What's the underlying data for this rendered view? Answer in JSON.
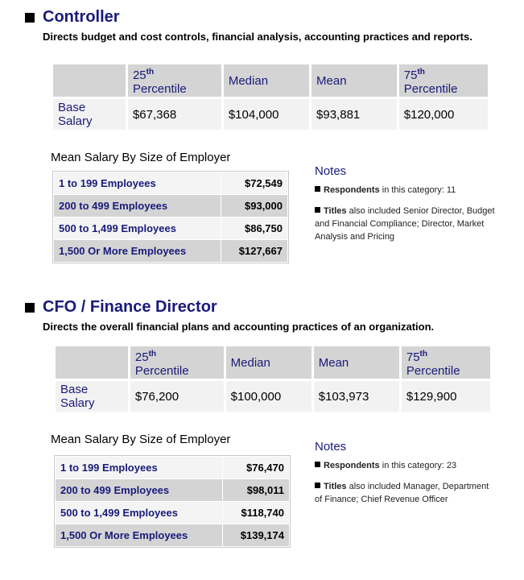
{
  "sections": [
    {
      "title": "Controller",
      "description": "Directs budget and cost controls, financial analysis, accounting practices and reports.",
      "salary_table": {
        "headers": [
          {
            "num": "25",
            "sup": "th",
            "rest": "Percentile"
          },
          {
            "label": "Median"
          },
          {
            "label": "Mean"
          },
          {
            "num": "75",
            "sup": "th",
            "rest": "Percentile"
          }
        ],
        "row_label_1": "Base",
        "row_label_2": "Salary",
        "values": [
          "$67,368",
          "$104,000",
          "$93,881",
          "$120,000"
        ]
      },
      "employer_heading": "Mean Salary By Size of Employer",
      "employer_rows": [
        {
          "label": "1 to 199 Employees",
          "value": "$72,549"
        },
        {
          "label": "200 to 499 Employees",
          "value": "$93,000"
        },
        {
          "label": "500 to 1,499 Employees",
          "value": "$86,750"
        },
        {
          "label": "1,500 Or More Employees",
          "value": "$127,667"
        }
      ],
      "notes": {
        "heading": "Notes",
        "respondents_label": "Respondents",
        "respondents_text": " in this category: 11",
        "titles_label": "Titles",
        "titles_text": " also included Senior Director, Budget and Financial Compliance; Director, Market Analysis and Pricing"
      }
    },
    {
      "title": "CFO / Finance Director",
      "description": "Directs the overall financial plans and accounting practices of an organization.",
      "salary_table": {
        "headers": [
          {
            "num": "25",
            "sup": "th",
            "rest": "Percentile"
          },
          {
            "label": "Median"
          },
          {
            "label": "Mean"
          },
          {
            "num": "75",
            "sup": "th",
            "rest": "Percentile"
          }
        ],
        "row_label_1": "Base",
        "row_label_2": "Salary",
        "values": [
          "$76,200",
          "$100,000",
          "$103,973",
          "$129,900"
        ]
      },
      "employer_heading": "Mean Salary By Size of Employer",
      "employer_rows": [
        {
          "label": "1 to 199 Employees",
          "value": "$76,470"
        },
        {
          "label": "200 to 499 Employees",
          "value": "$98,011"
        },
        {
          "label": "500 to 1,499 Employees",
          "value": "$118,740"
        },
        {
          "label": "1,500 Or More Employees",
          "value": "$139,174"
        }
      ],
      "notes": {
        "heading": "Notes",
        "respondents_label": "Respondents",
        "respondents_text": " in this category: 23",
        "titles_label": "Titles",
        "titles_text": " also included Manager, Department of Finance; Chief Revenue Officer"
      }
    }
  ]
}
